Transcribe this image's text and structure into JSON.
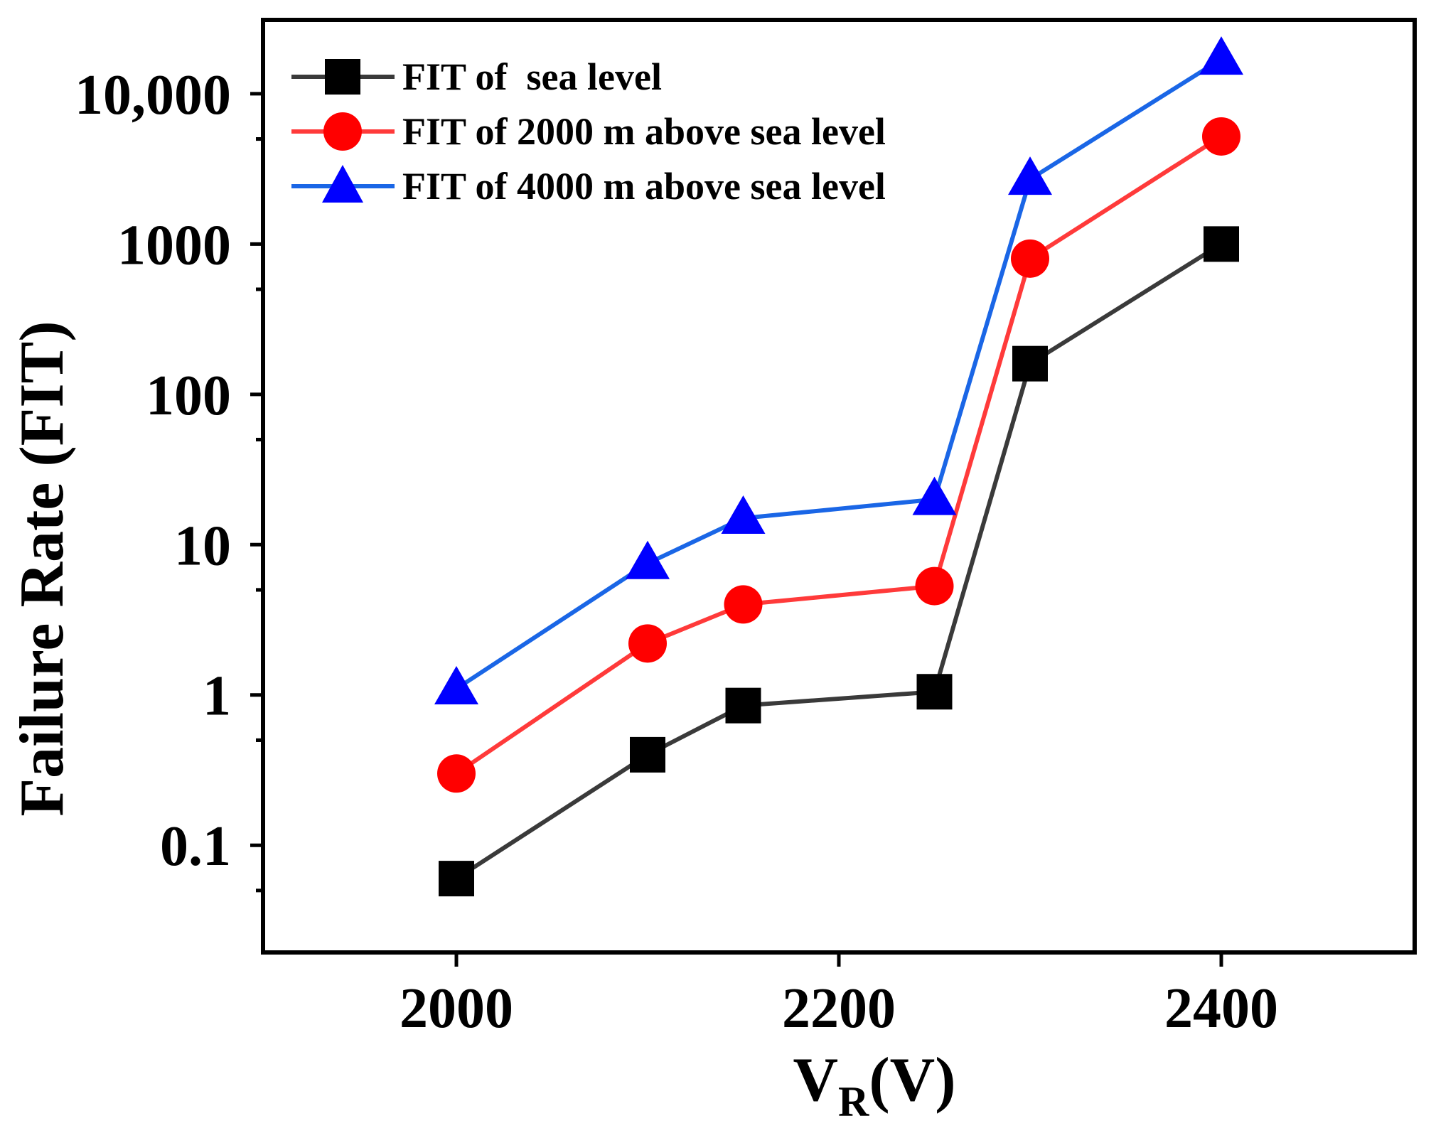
{
  "chart_data": {
    "type": "line",
    "yscale": "log",
    "x": [
      2000,
      2100,
      2150,
      2250,
      2300,
      2400
    ],
    "xlim": [
      1900,
      2500
    ],
    "ylim": [
      0.02,
      30000
    ],
    "xticks": [
      2000,
      2200,
      2400
    ],
    "xtick_labels": [
      "2000",
      "2200",
      "2400"
    ],
    "yticks": [
      0.1,
      1,
      10,
      100,
      1000,
      10000
    ],
    "ytick_labels": [
      "0.1",
      "1",
      "10",
      "100",
      "1000",
      "10,000"
    ],
    "xlabel": {
      "main": "V",
      "sub": "R",
      "unit": "(V)"
    },
    "ylabel": "Failure Rate (FIT)",
    "legend_position": "top-left",
    "series": [
      {
        "name": "FIT of  sea level",
        "color": "#3a3a3a",
        "marker": "square",
        "values": [
          0.06,
          0.4,
          0.85,
          1.05,
          160,
          1000
        ]
      },
      {
        "name": "FIT of 2000 m above sea level",
        "color": "#ff3a3a",
        "marker": "circle",
        "values": [
          0.3,
          2.2,
          4.0,
          5.3,
          800,
          5200
        ]
      },
      {
        "name": "FIT of 4000 m above sea level",
        "color": "#1a66e6",
        "marker": "triangle",
        "values": [
          1.1,
          7.5,
          15,
          20,
          2700,
          17000
        ]
      }
    ]
  }
}
